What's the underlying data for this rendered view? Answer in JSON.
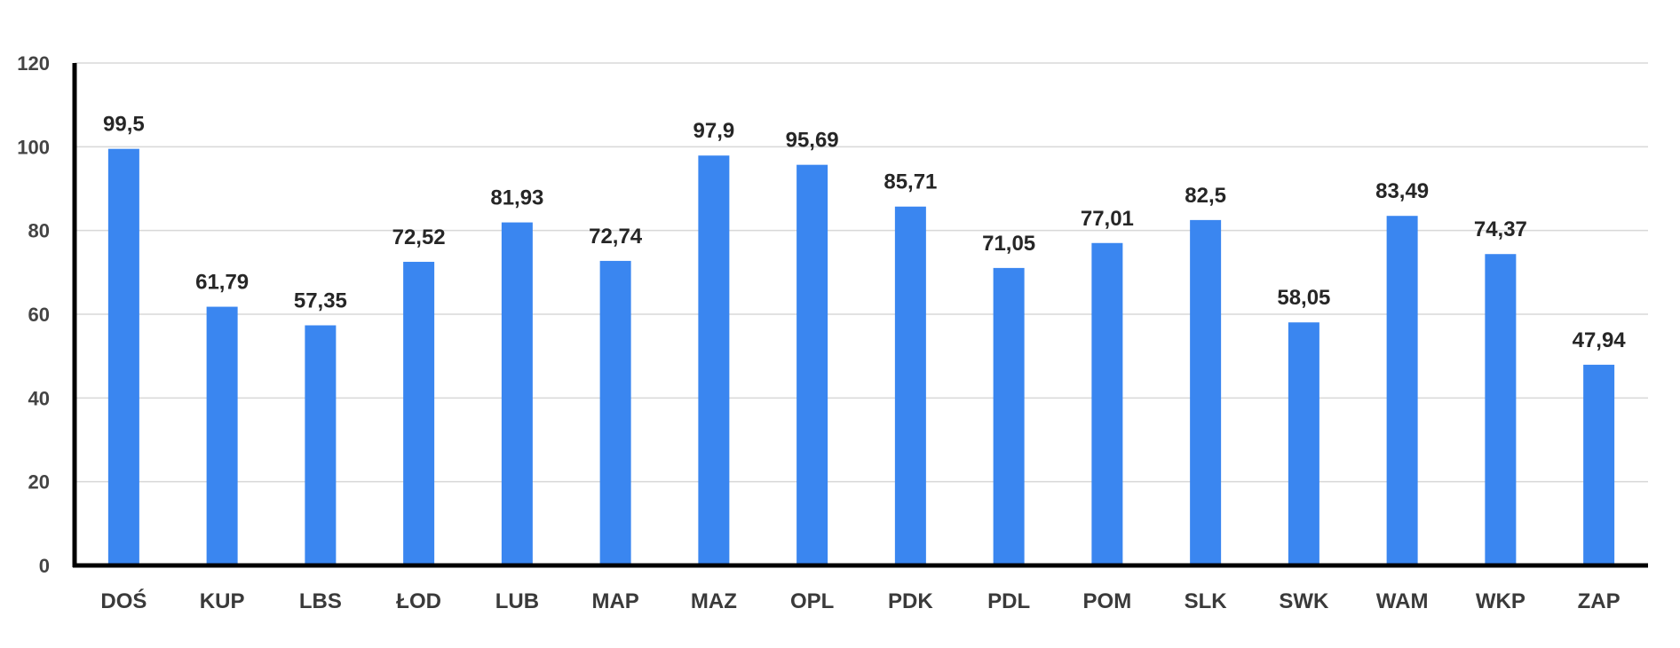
{
  "chart_data": {
    "type": "bar",
    "title": "",
    "xlabel": "",
    "ylabel": "",
    "categories": [
      "DOŚ",
      "KUP",
      "LBS",
      "ŁOD",
      "LUB",
      "MAP",
      "MAZ",
      "OPL",
      "PDK",
      "PDL",
      "POM",
      "SLK",
      "SWK",
      "WAM",
      "WKP",
      "ZAP"
    ],
    "values": [
      99.5,
      61.79,
      57.35,
      72.52,
      81.93,
      72.74,
      97.9,
      95.69,
      85.71,
      71.05,
      77.01,
      82.5,
      58.05,
      83.49,
      74.37,
      47.94
    ],
    "data_labels": [
      "99,5",
      "61,79",
      "57,35",
      "72,52",
      "81,93",
      "72,74",
      "97,9",
      "95,69",
      "85,71",
      "71,05",
      "77,01",
      "82,5",
      "58,05",
      "83,49",
      "74,37",
      "47,94"
    ],
    "yticks": [
      0,
      20,
      40,
      60,
      80,
      100,
      120
    ],
    "ylim": [
      0,
      120
    ],
    "grid": true,
    "legend": "none",
    "bar_color": "#3a86f0",
    "axis_color": "#000000",
    "grid_color": "#d8d8d8"
  }
}
